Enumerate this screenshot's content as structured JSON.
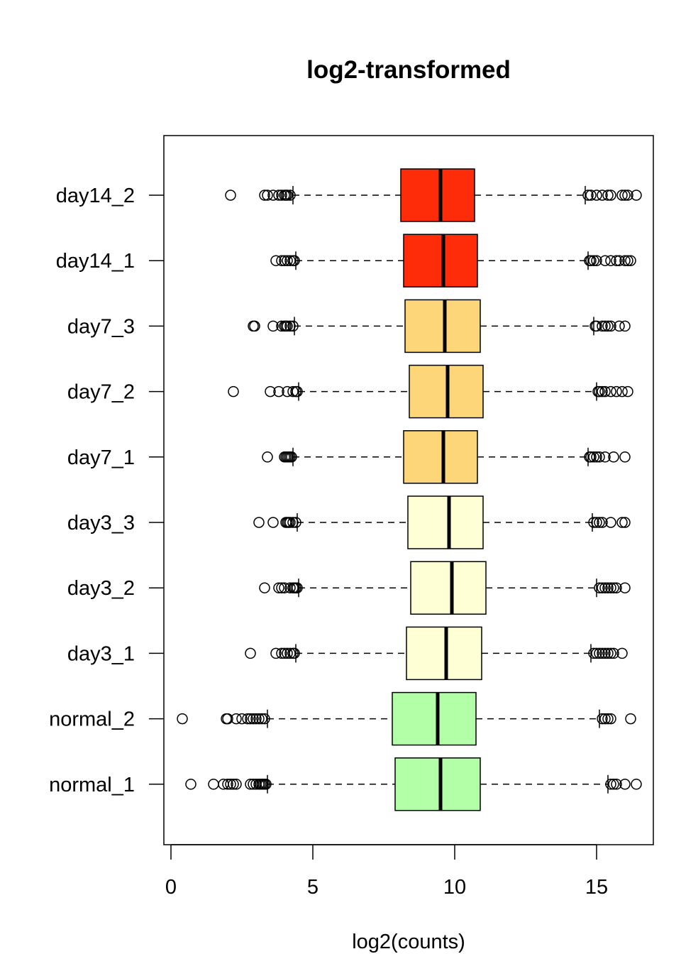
{
  "chart_data": {
    "type": "boxplot",
    "orientation": "horizontal",
    "title": "log2-transformed",
    "xlabel": "log2(counts)",
    "ylabel": "",
    "xlim": [
      -0.3,
      17.0
    ],
    "xticks": [
      0,
      5,
      10,
      15
    ],
    "grid": false,
    "legend": "none",
    "series": [
      {
        "name": "normal_1",
        "color": "#B2FFA8",
        "whisker_low": 3.4,
        "q1": 7.9,
        "median": 9.5,
        "q3": 10.9,
        "whisker_high": 15.4,
        "outliers_low": [
          0.7,
          1.5,
          1.85,
          2.0,
          2.1,
          2.2,
          2.3,
          2.8,
          2.9,
          3.0,
          3.1,
          3.15,
          3.2,
          3.25,
          3.3,
          3.35
        ],
        "outliers_high": [
          15.5,
          15.6,
          15.7,
          16.0,
          16.4
        ]
      },
      {
        "name": "normal_2",
        "color": "#B2FFA8",
        "whisker_low": 3.4,
        "q1": 7.8,
        "median": 9.4,
        "q3": 10.75,
        "whisker_high": 15.1,
        "outliers_low": [
          0.4,
          1.95,
          2.0,
          2.3,
          2.5,
          2.7,
          2.8,
          2.9,
          3.0,
          3.1,
          3.2,
          3.3
        ],
        "outliers_high": [
          15.2,
          15.3,
          15.4,
          15.5,
          16.2
        ]
      },
      {
        "name": "day3_1",
        "color": "#FFFFD6",
        "whisker_low": 4.4,
        "q1": 8.3,
        "median": 9.7,
        "q3": 10.95,
        "whisker_high": 14.8,
        "outliers_low": [
          2.8,
          3.7,
          3.9,
          4.0,
          4.1,
          4.2,
          4.3,
          4.35
        ],
        "outliers_high": [
          14.9,
          15.0,
          15.1,
          15.2,
          15.3,
          15.4,
          15.5,
          15.6,
          15.9
        ]
      },
      {
        "name": "day3_2",
        "color": "#FFFFD6",
        "whisker_low": 4.5,
        "q1": 8.45,
        "median": 9.9,
        "q3": 11.1,
        "whisker_high": 15.0,
        "outliers_low": [
          3.3,
          3.8,
          3.9,
          4.0,
          4.2,
          4.3,
          4.35,
          4.4,
          4.45
        ],
        "outliers_high": [
          15.1,
          15.2,
          15.3,
          15.4,
          15.5,
          15.6,
          15.7,
          16.0
        ]
      },
      {
        "name": "day3_3",
        "color": "#FFFFD6",
        "whisker_low": 4.45,
        "q1": 8.35,
        "median": 9.8,
        "q3": 11.0,
        "whisker_high": 14.85,
        "outliers_low": [
          3.1,
          3.6,
          4.05,
          4.1,
          4.15,
          4.2,
          4.3,
          4.4
        ],
        "outliers_high": [
          14.9,
          15.0,
          15.1,
          15.2,
          15.5,
          15.9,
          16.0
        ]
      },
      {
        "name": "day7_1",
        "color": "#FDD67A",
        "whisker_low": 4.3,
        "q1": 8.2,
        "median": 9.6,
        "q3": 10.8,
        "whisker_high": 14.7,
        "outliers_low": [
          3.4,
          4.0,
          4.05,
          4.1,
          4.15,
          4.2,
          4.25
        ],
        "outliers_high": [
          14.75,
          14.8,
          14.9,
          15.0,
          15.1,
          15.3,
          15.6,
          16.0
        ]
      },
      {
        "name": "day7_2",
        "color": "#FDD67A",
        "whisker_low": 4.5,
        "q1": 8.4,
        "median": 9.75,
        "q3": 11.0,
        "whisker_high": 15.0,
        "outliers_low": [
          2.2,
          3.5,
          3.8,
          4.1,
          4.3,
          4.4,
          4.45
        ],
        "outliers_high": [
          15.05,
          15.1,
          15.2,
          15.3,
          15.5,
          15.7,
          15.9,
          16.1
        ]
      },
      {
        "name": "day7_3",
        "color": "#FDD67A",
        "whisker_low": 4.35,
        "q1": 8.25,
        "median": 9.65,
        "q3": 10.9,
        "whisker_high": 14.9,
        "outliers_low": [
          2.9,
          2.95,
          3.6,
          3.9,
          4.0,
          4.05,
          4.1,
          4.2,
          4.3
        ],
        "outliers_high": [
          14.95,
          15.0,
          15.2,
          15.3,
          15.4,
          15.5,
          15.8,
          16.0
        ]
      },
      {
        "name": "day14_1",
        "color": "#FF2C0A",
        "whisker_low": 4.4,
        "q1": 8.2,
        "median": 9.6,
        "q3": 10.8,
        "whisker_high": 14.7,
        "outliers_low": [
          3.7,
          3.9,
          4.0,
          4.1,
          4.2,
          4.3,
          4.35
        ],
        "outliers_high": [
          14.75,
          14.8,
          14.9,
          15.0,
          15.3,
          15.5,
          15.7,
          15.8,
          16.0,
          16.1,
          16.2
        ]
      },
      {
        "name": "day14_2",
        "color": "#FF2C0A",
        "whisker_low": 4.3,
        "q1": 8.1,
        "median": 9.5,
        "q3": 10.7,
        "whisker_high": 14.6,
        "outliers_low": [
          2.1,
          3.3,
          3.4,
          3.6,
          3.8,
          3.9,
          4.0,
          4.05,
          4.1,
          4.2
        ],
        "outliers_high": [
          14.7,
          14.8,
          15.0,
          15.2,
          15.4,
          15.5,
          15.9,
          16.0,
          16.1,
          16.4
        ]
      }
    ]
  }
}
